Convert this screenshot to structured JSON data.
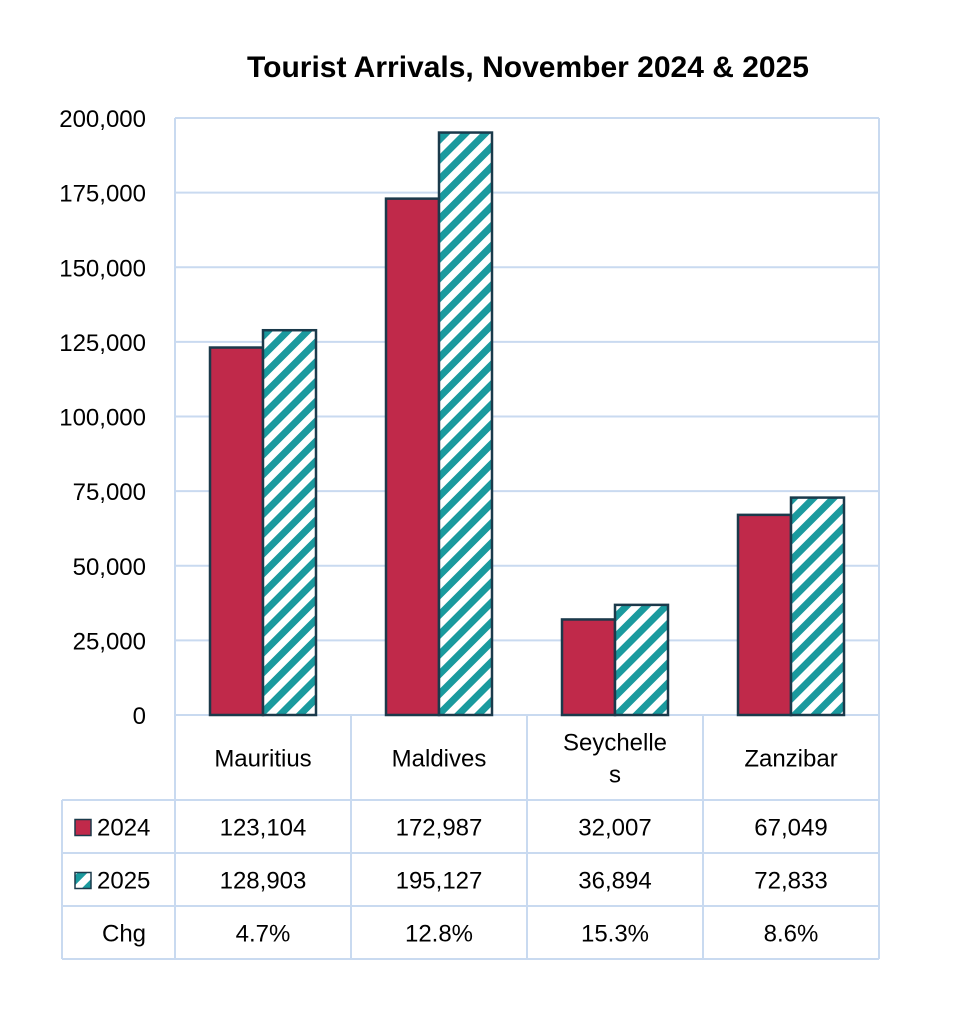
{
  "chart_data": {
    "type": "bar",
    "title": "Tourist Arrivals, November 2024 & 2025",
    "categories": [
      "Mauritius",
      "Maldives",
      "Seychelles",
      "Zanzibar"
    ],
    "category_label_lines": [
      [
        "Mauritius"
      ],
      [
        "Maldives"
      ],
      [
        "Seychelle",
        "s"
      ],
      [
        "Zanzibar"
      ]
    ],
    "series": [
      {
        "name": "2024",
        "values": [
          123104,
          172987,
          32007,
          67049
        ],
        "color": "#c0294a",
        "pattern": "solid"
      },
      {
        "name": "2025",
        "values": [
          128903,
          195127,
          36894,
          72833
        ],
        "color": "#1a9a9e",
        "pattern": "diagonal-stripes"
      }
    ],
    "y_ticks": [
      "0",
      "25,000",
      "50,000",
      "75,000",
      "100,000",
      "125,000",
      "150,000",
      "175,000",
      "200,000"
    ],
    "ylim": [
      0,
      200000
    ],
    "grid": true,
    "data_table": {
      "rows": [
        {
          "label": "2024",
          "cells": [
            "123,104",
            "172,987",
            "32,007",
            "67,049"
          ]
        },
        {
          "label": "2025",
          "cells": [
            "128,903",
            "195,127",
            "36,894",
            "72,833"
          ]
        },
        {
          "label": "Chg",
          "cells": [
            "4.7%",
            "12.8%",
            "15.3%",
            "8.6%"
          ]
        }
      ]
    },
    "colors": {
      "grid": "#c9daf0",
      "bar_outline": "#1b3a4b"
    }
  }
}
